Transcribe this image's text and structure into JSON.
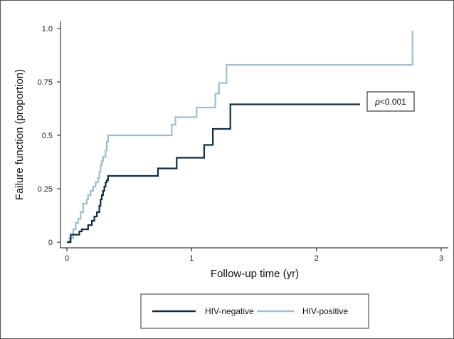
{
  "chart_data": {
    "type": "line",
    "step": true,
    "title": "",
    "xlabel": "Follow-up time (yr)",
    "ylabel": "Failure function (proportion)",
    "xlim": [
      0,
      3
    ],
    "ylim": [
      0,
      1
    ],
    "x_ticks": [
      0,
      1,
      2,
      3
    ],
    "x_tick_labels": [
      "0",
      "1",
      "2",
      "3"
    ],
    "y_ticks": [
      0,
      0.25,
      0.5,
      0.75,
      1.0
    ],
    "y_tick_labels": [
      "0",
      "0.25",
      "0.5",
      "0.75",
      "1.0"
    ],
    "grid": false,
    "legend_position": "bottom",
    "annotation": {
      "italic": "p",
      "rest": "<0.001",
      "x": 2.4,
      "y": 0.65
    },
    "series": [
      {
        "name": "HIV-negative",
        "color": "#0d2d45",
        "points": [
          [
            0.0,
            0.0
          ],
          [
            0.03,
            0.0
          ],
          [
            0.03,
            0.035
          ],
          [
            0.1,
            0.035
          ],
          [
            0.1,
            0.05
          ],
          [
            0.12,
            0.05
          ],
          [
            0.12,
            0.06
          ],
          [
            0.17,
            0.06
          ],
          [
            0.17,
            0.08
          ],
          [
            0.2,
            0.08
          ],
          [
            0.2,
            0.1
          ],
          [
            0.22,
            0.1
          ],
          [
            0.22,
            0.12
          ],
          [
            0.24,
            0.12
          ],
          [
            0.24,
            0.14
          ],
          [
            0.26,
            0.14
          ],
          [
            0.26,
            0.17
          ],
          [
            0.27,
            0.17
          ],
          [
            0.27,
            0.2
          ],
          [
            0.28,
            0.2
          ],
          [
            0.28,
            0.22
          ],
          [
            0.29,
            0.22
          ],
          [
            0.29,
            0.24
          ],
          [
            0.3,
            0.24
          ],
          [
            0.3,
            0.26
          ],
          [
            0.31,
            0.26
          ],
          [
            0.31,
            0.28
          ],
          [
            0.32,
            0.28
          ],
          [
            0.32,
            0.29
          ],
          [
            0.33,
            0.29
          ],
          [
            0.33,
            0.31
          ],
          [
            0.73,
            0.31
          ],
          [
            0.73,
            0.345
          ],
          [
            0.88,
            0.345
          ],
          [
            0.88,
            0.395
          ],
          [
            1.1,
            0.395
          ],
          [
            1.1,
            0.455
          ],
          [
            1.17,
            0.455
          ],
          [
            1.17,
            0.53
          ],
          [
            1.31,
            0.53
          ],
          [
            1.31,
            0.645
          ],
          [
            2.35,
            0.645
          ]
        ]
      },
      {
        "name": "HIV-positive",
        "color": "#9dbfd3",
        "points": [
          [
            0.0,
            0.0
          ],
          [
            0.02,
            0.0
          ],
          [
            0.02,
            0.02
          ],
          [
            0.05,
            0.02
          ],
          [
            0.05,
            0.06
          ],
          [
            0.07,
            0.06
          ],
          [
            0.07,
            0.09
          ],
          [
            0.09,
            0.09
          ],
          [
            0.09,
            0.11
          ],
          [
            0.11,
            0.11
          ],
          [
            0.11,
            0.14
          ],
          [
            0.13,
            0.14
          ],
          [
            0.13,
            0.18
          ],
          [
            0.16,
            0.18
          ],
          [
            0.16,
            0.2
          ],
          [
            0.17,
            0.2
          ],
          [
            0.17,
            0.22
          ],
          [
            0.19,
            0.22
          ],
          [
            0.19,
            0.24
          ],
          [
            0.21,
            0.24
          ],
          [
            0.21,
            0.26
          ],
          [
            0.23,
            0.26
          ],
          [
            0.23,
            0.28
          ],
          [
            0.25,
            0.28
          ],
          [
            0.25,
            0.3
          ],
          [
            0.26,
            0.3
          ],
          [
            0.26,
            0.33
          ],
          [
            0.27,
            0.33
          ],
          [
            0.27,
            0.36
          ],
          [
            0.28,
            0.36
          ],
          [
            0.28,
            0.38
          ],
          [
            0.29,
            0.38
          ],
          [
            0.29,
            0.4
          ],
          [
            0.31,
            0.4
          ],
          [
            0.31,
            0.43
          ],
          [
            0.32,
            0.43
          ],
          [
            0.32,
            0.47
          ],
          [
            0.33,
            0.47
          ],
          [
            0.33,
            0.5
          ],
          [
            0.84,
            0.5
          ],
          [
            0.84,
            0.55
          ],
          [
            0.87,
            0.55
          ],
          [
            0.87,
            0.585
          ],
          [
            1.04,
            0.585
          ],
          [
            1.04,
            0.63
          ],
          [
            1.19,
            0.63
          ],
          [
            1.19,
            0.695
          ],
          [
            1.22,
            0.695
          ],
          [
            1.22,
            0.745
          ],
          [
            1.28,
            0.745
          ],
          [
            1.28,
            0.83
          ],
          [
            2.77,
            0.83
          ],
          [
            2.77,
            0.99
          ]
        ]
      }
    ]
  }
}
